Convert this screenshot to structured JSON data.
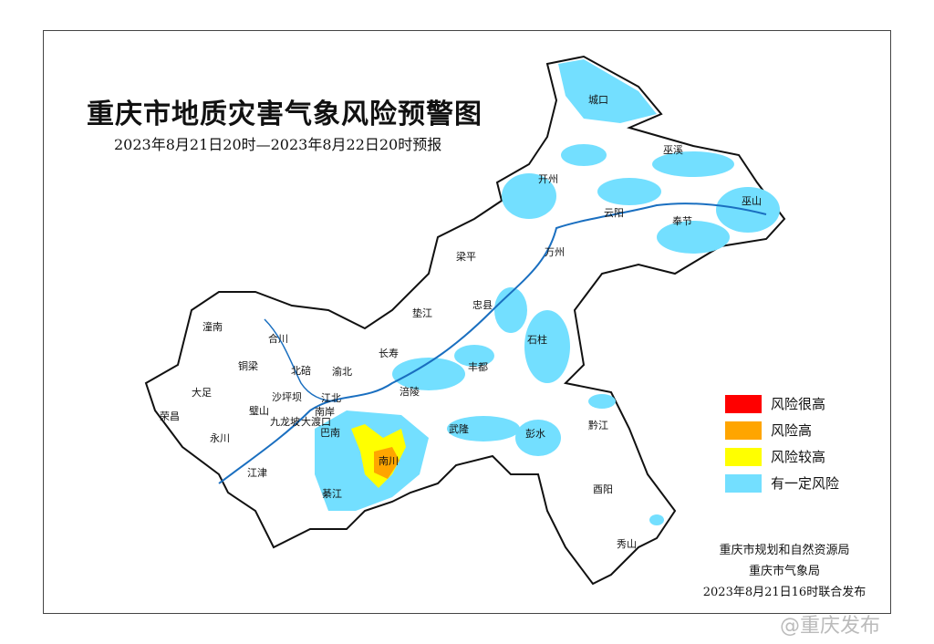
{
  "title": "重庆市地质灾害气象风险预警图",
  "subtitle": "2023年8月21日20时—2023年8月22日20时预报",
  "legend": [
    {
      "label": "风险很高",
      "color": "#ff0000"
    },
    {
      "label": "风险高",
      "color": "#ffa500"
    },
    {
      "label": "风险较高",
      "color": "#ffff00"
    },
    {
      "label": "有一定风险",
      "color": "#73dfff"
    }
  ],
  "issuer": {
    "line1": "重庆市规划和自然资源局",
    "line2": "重庆市气象局",
    "line3": "2023年8月21日16时联合发布"
  },
  "watermark": "@重庆发布",
  "districts": [
    "城口",
    "巫溪",
    "开州",
    "云阳",
    "奉节",
    "巫山",
    "梁平",
    "万州",
    "忠县",
    "垫江",
    "石柱",
    "长寿",
    "丰都",
    "涪陵",
    "武隆",
    "彭水",
    "黔江",
    "酉阳",
    "秀山",
    "南川",
    "綦江",
    "江津",
    "巴南",
    "渝北",
    "北碚",
    "合川",
    "潼南",
    "铜梁",
    "大足",
    "荣昌",
    "璧山",
    "永川",
    "沙坪坝",
    "江北",
    "南岸",
    "九龙坡",
    "大渡口"
  ]
}
